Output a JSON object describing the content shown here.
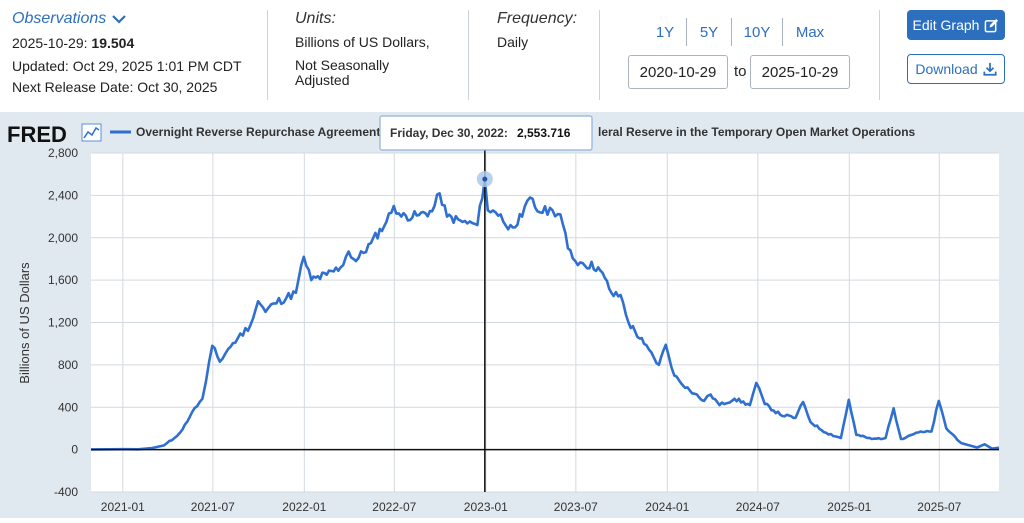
{
  "header": {
    "observations_label": "Observations",
    "obs_date_prefix": "2025-10-29:",
    "obs_value": "19.504",
    "updated": "Updated: Oct 29, 2025 1:01 PM CDT",
    "next_release": "Next Release Date: Oct 30, 2025",
    "units_label": "Units:",
    "units_line1": "Billions of US Dollars,",
    "units_line2": "Not Seasonally",
    "units_line3": "Adjusted",
    "frequency_label": "Frequency:",
    "frequency_value": "Daily",
    "ranges": [
      "1Y",
      "5Y",
      "10Y",
      "Max"
    ],
    "date_start": "2020-10-29",
    "date_to": "to",
    "date_end": "2025-10-29",
    "edit_graph": "Edit Graph",
    "download": "Download"
  },
  "colors": {
    "accent": "#2c6fbf",
    "series": "#2f6fd0",
    "plot_bg": "#ffffff",
    "chart_bg": "#e1e9f0"
  },
  "chart_data": {
    "type": "line",
    "logo": "FRED",
    "series_name": "Overnight Reverse Repurchase Agreements: Treasury Securities Sold by the Federal Reserve in the Temporary Open Market Operations",
    "legend_left": "Overnight Reverse Repurchase Agreements:",
    "legend_right": "leral Reserve in the Temporary Open Market Operations",
    "ylabel": "Billions of US Dollars",
    "ylim": [
      -400,
      2800
    ],
    "yticks": [
      -400,
      0,
      400,
      800,
      1200,
      1600,
      2000,
      2400,
      2800
    ],
    "ytick_labels": [
      "-400",
      "0",
      "400",
      "800",
      "1,200",
      "1,600",
      "2,000",
      "2,400",
      "2,800"
    ],
    "xlim": [
      "2020-10-29",
      "2025-10-29"
    ],
    "xticks": [
      "2021-01-01",
      "2021-07-01",
      "2022-01-01",
      "2022-07-01",
      "2023-01-01",
      "2023-07-01",
      "2024-01-01",
      "2024-07-01",
      "2025-01-01",
      "2025-07-01"
    ],
    "xtick_labels": [
      "2021-01",
      "2021-07",
      "2022-01",
      "2022-07",
      "2023-01",
      "2023-07",
      "2024-01",
      "2024-07",
      "2025-01",
      "2025-07"
    ],
    "tooltip": {
      "date": "2022-12-30",
      "label": "Friday, Dec 30, 2022:",
      "value": 2553.716,
      "value_label": "2,553.716"
    },
    "points": [
      [
        "2020-10-29",
        2
      ],
      [
        "2020-12-01",
        3
      ],
      [
        "2021-01-01",
        4
      ],
      [
        "2021-02-01",
        3
      ],
      [
        "2021-03-01",
        15
      ],
      [
        "2021-03-25",
        40
      ],
      [
        "2021-04-15",
        110
      ],
      [
        "2021-05-01",
        190
      ],
      [
        "2021-05-20",
        350
      ],
      [
        "2021-06-10",
        480
      ],
      [
        "2021-06-17",
        640
      ],
      [
        "2021-06-30",
        980
      ],
      [
        "2021-07-15",
        830
      ],
      [
        "2021-08-01",
        950
      ],
      [
        "2021-08-20",
        1050
      ],
      [
        "2021-09-15",
        1180
      ],
      [
        "2021-09-30",
        1400
      ],
      [
        "2021-10-15",
        1300
      ],
      [
        "2021-11-01",
        1380
      ],
      [
        "2021-12-15",
        1480
      ],
      [
        "2021-12-31",
        1820
      ],
      [
        "2022-01-15",
        1600
      ],
      [
        "2022-02-15",
        1650
      ],
      [
        "2022-03-15",
        1720
      ],
      [
        "2022-03-31",
        1870
      ],
      [
        "2022-04-15",
        1780
      ],
      [
        "2022-05-15",
        1950
      ],
      [
        "2022-06-15",
        2150
      ],
      [
        "2022-06-30",
        2300
      ],
      [
        "2022-07-15",
        2200
      ],
      [
        "2022-08-15",
        2210
      ],
      [
        "2022-09-15",
        2250
      ],
      [
        "2022-09-30",
        2420
      ],
      [
        "2022-10-15",
        2200
      ],
      [
        "2022-11-15",
        2150
      ],
      [
        "2022-12-15",
        2120
      ],
      [
        "2022-12-30",
        2553.716
      ],
      [
        "2023-01-05",
        2260
      ],
      [
        "2023-01-31",
        2220
      ],
      [
        "2023-02-15",
        2080
      ],
      [
        "2023-03-15",
        2200
      ],
      [
        "2023-03-31",
        2380
      ],
      [
        "2023-04-15",
        2250
      ],
      [
        "2023-05-15",
        2260
      ],
      [
        "2023-05-31",
        2220
      ],
      [
        "2023-06-15",
        1900
      ],
      [
        "2023-06-30",
        1780
      ],
      [
        "2023-07-15",
        1760
      ],
      [
        "2023-08-15",
        1720
      ],
      [
        "2023-09-15",
        1450
      ],
      [
        "2023-09-29",
        1460
      ],
      [
        "2023-10-15",
        1200
      ],
      [
        "2023-11-15",
        1000
      ],
      [
        "2023-12-15",
        800
      ],
      [
        "2023-12-29",
        990
      ],
      [
        "2024-01-15",
        700
      ],
      [
        "2024-02-15",
        560
      ],
      [
        "2024-03-15",
        460
      ],
      [
        "2024-03-28",
        520
      ],
      [
        "2024-04-15",
        420
      ],
      [
        "2024-05-15",
        480
      ],
      [
        "2024-06-15",
        420
      ],
      [
        "2024-06-28",
        630
      ],
      [
        "2024-07-15",
        430
      ],
      [
        "2024-08-15",
        330
      ],
      [
        "2024-09-15",
        300
      ],
      [
        "2024-09-30",
        450
      ],
      [
        "2024-10-15",
        260
      ],
      [
        "2024-11-15",
        160
      ],
      [
        "2024-12-15",
        110
      ],
      [
        "2024-12-31",
        470
      ],
      [
        "2025-01-15",
        140
      ],
      [
        "2025-02-15",
        100
      ],
      [
        "2025-03-15",
        110
      ],
      [
        "2025-03-31",
        390
      ],
      [
        "2025-04-15",
        100
      ],
      [
        "2025-05-15",
        160
      ],
      [
        "2025-06-15",
        170
      ],
      [
        "2025-06-30",
        460
      ],
      [
        "2025-07-15",
        200
      ],
      [
        "2025-08-15",
        60
      ],
      [
        "2025-09-15",
        20
      ],
      [
        "2025-09-30",
        50
      ],
      [
        "2025-10-15",
        10
      ],
      [
        "2025-10-29",
        19.504
      ]
    ]
  }
}
